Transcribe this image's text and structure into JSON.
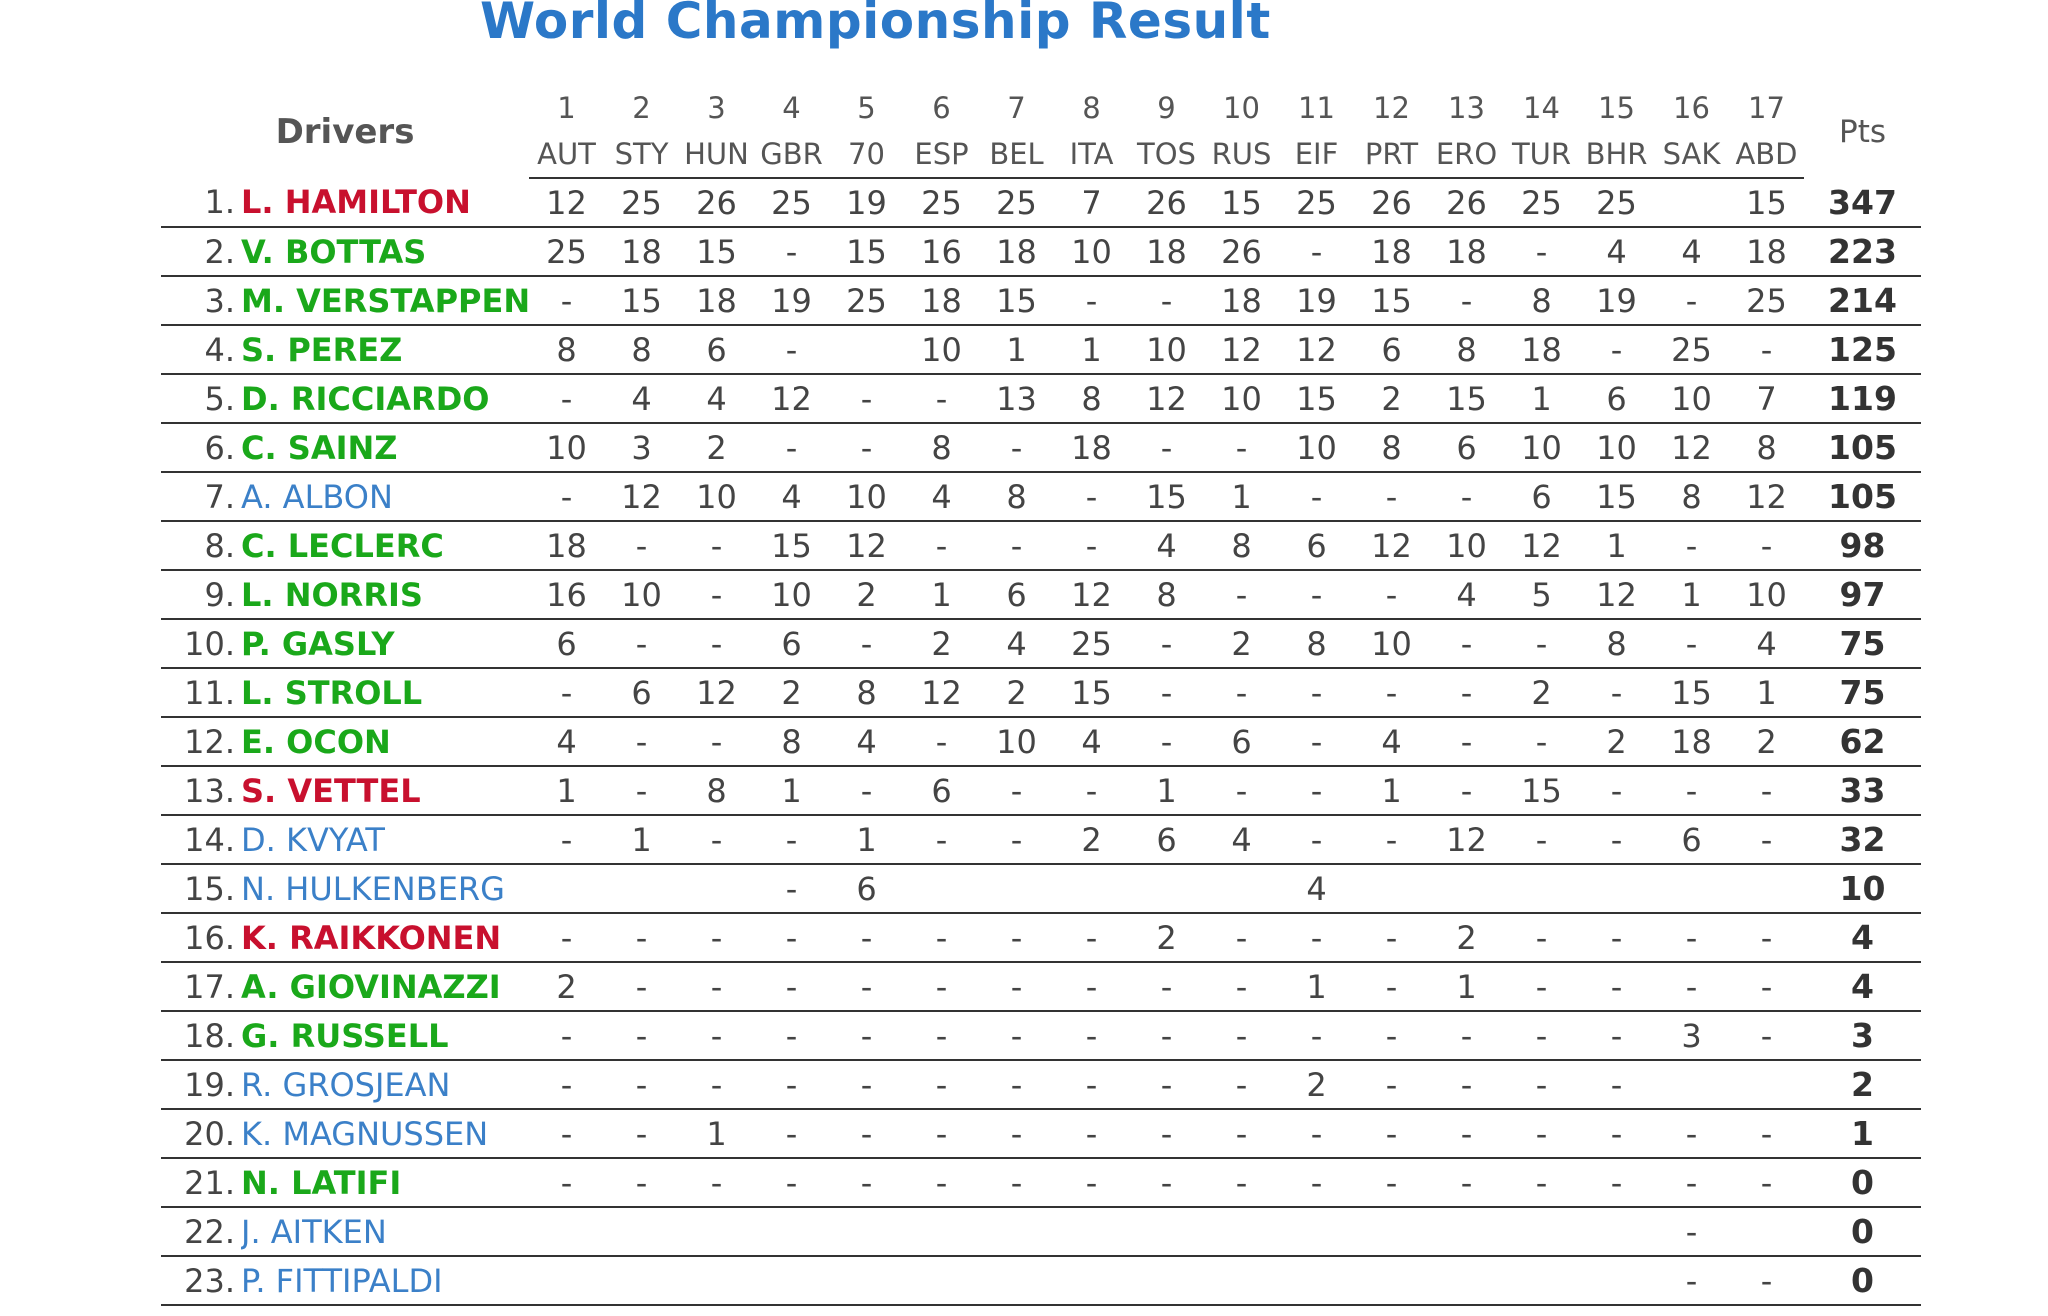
{
  "title": "World Championship Result",
  "header": {
    "drivers": "Drivers",
    "points": "Pts",
    "rounds": [
      {
        "num": "1",
        "code": "AUT"
      },
      {
        "num": "2",
        "code": "STY"
      },
      {
        "num": "3",
        "code": "HUN"
      },
      {
        "num": "4",
        "code": "GBR"
      },
      {
        "num": "5",
        "code": "70"
      },
      {
        "num": "6",
        "code": "ESP"
      },
      {
        "num": "7",
        "code": "BEL"
      },
      {
        "num": "8",
        "code": "ITA"
      },
      {
        "num": "9",
        "code": "TOS"
      },
      {
        "num": "10",
        "code": "RUS"
      },
      {
        "num": "11",
        "code": "EIF"
      },
      {
        "num": "12",
        "code": "PRT"
      },
      {
        "num": "13",
        "code": "ERO"
      },
      {
        "num": "14",
        "code": "TUR"
      },
      {
        "num": "15",
        "code": "BHR"
      },
      {
        "num": "16",
        "code": "SAK"
      },
      {
        "num": "17",
        "code": "ABD"
      }
    ]
  },
  "colors": {
    "red": "#c8102e",
    "green": "#1aa81a",
    "blue": "#3b80c8",
    "title": "#2b78c8"
  },
  "rows": [
    {
      "pos": "1.",
      "name": "L. HAMILTON",
      "color": "red",
      "results": [
        "12",
        "25",
        "26",
        "25",
        "19",
        "25",
        "25",
        "7",
        "26",
        "15",
        "25",
        "26",
        "26",
        "25",
        "25",
        "",
        "15"
      ],
      "pts": "347"
    },
    {
      "pos": "2.",
      "name": "V. BOTTAS",
      "color": "green",
      "results": [
        "25",
        "18",
        "15",
        "-",
        "15",
        "16",
        "18",
        "10",
        "18",
        "26",
        "-",
        "18",
        "18",
        "-",
        "4",
        "4",
        "18"
      ],
      "pts": "223"
    },
    {
      "pos": "3.",
      "name": "M. VERSTAPPEN",
      "color": "green",
      "results": [
        "-",
        "15",
        "18",
        "19",
        "25",
        "18",
        "15",
        "-",
        "-",
        "18",
        "19",
        "15",
        "-",
        "8",
        "19",
        "-",
        "25"
      ],
      "pts": "214"
    },
    {
      "pos": "4.",
      "name": "S. PEREZ",
      "color": "green",
      "results": [
        "8",
        "8",
        "6",
        "-",
        "",
        "10",
        "1",
        "1",
        "10",
        "12",
        "12",
        "6",
        "8",
        "18",
        "-",
        "25",
        "-"
      ],
      "pts": "125"
    },
    {
      "pos": "5.",
      "name": "D. RICCIARDO",
      "color": "green",
      "results": [
        "-",
        "4",
        "4",
        "12",
        "-",
        "-",
        "13",
        "8",
        "12",
        "10",
        "15",
        "2",
        "15",
        "1",
        "6",
        "10",
        "7"
      ],
      "pts": "119"
    },
    {
      "pos": "6.",
      "name": "C. SAINZ",
      "color": "green",
      "results": [
        "10",
        "3",
        "2",
        "-",
        "-",
        "8",
        "-",
        "18",
        "-",
        "-",
        "10",
        "8",
        "6",
        "10",
        "10",
        "12",
        "8"
      ],
      "pts": "105"
    },
    {
      "pos": "7.",
      "name": "A. ALBON",
      "color": "blue",
      "results": [
        "-",
        "12",
        "10",
        "4",
        "10",
        "4",
        "8",
        "-",
        "15",
        "1",
        "-",
        "-",
        "-",
        "6",
        "15",
        "8",
        "12"
      ],
      "pts": "105"
    },
    {
      "pos": "8.",
      "name": "C. LECLERC",
      "color": "green",
      "results": [
        "18",
        "-",
        "-",
        "15",
        "12",
        "-",
        "-",
        "-",
        "4",
        "8",
        "6",
        "12",
        "10",
        "12",
        "1",
        "-",
        "-"
      ],
      "pts": "98"
    },
    {
      "pos": "9.",
      "name": "L. NORRIS",
      "color": "green",
      "results": [
        "16",
        "10",
        "-",
        "10",
        "2",
        "1",
        "6",
        "12",
        "8",
        "-",
        "-",
        "-",
        "4",
        "5",
        "12",
        "1",
        "10"
      ],
      "pts": "97"
    },
    {
      "pos": "10.",
      "name": "P. GASLY",
      "color": "green",
      "results": [
        "6",
        "-",
        "-",
        "6",
        "-",
        "2",
        "4",
        "25",
        "-",
        "2",
        "8",
        "10",
        "-",
        "-",
        "8",
        "-",
        "4"
      ],
      "pts": "75"
    },
    {
      "pos": "11.",
      "name": "L. STROLL",
      "color": "green",
      "results": [
        "-",
        "6",
        "12",
        "2",
        "8",
        "12",
        "2",
        "15",
        "-",
        "-",
        "-",
        "-",
        "-",
        "2",
        "-",
        "15",
        "1"
      ],
      "pts": "75"
    },
    {
      "pos": "12.",
      "name": "E. OCON",
      "color": "green",
      "results": [
        "4",
        "-",
        "-",
        "8",
        "4",
        "-",
        "10",
        "4",
        "-",
        "6",
        "-",
        "4",
        "-",
        "-",
        "2",
        "18",
        "2"
      ],
      "pts": "62"
    },
    {
      "pos": "13.",
      "name": "S. VETTEL",
      "color": "red",
      "results": [
        "1",
        "-",
        "8",
        "1",
        "-",
        "6",
        "-",
        "-",
        "1",
        "-",
        "-",
        "1",
        "-",
        "15",
        "-",
        "-",
        "-"
      ],
      "pts": "33"
    },
    {
      "pos": "14.",
      "name": "D. KVYAT",
      "color": "blue",
      "results": [
        "-",
        "1",
        "-",
        "-",
        "1",
        "-",
        "-",
        "2",
        "6",
        "4",
        "-",
        "-",
        "12",
        "-",
        "-",
        "6",
        "-"
      ],
      "pts": "32"
    },
    {
      "pos": "15.",
      "name": "N. HULKENBERG",
      "color": "blue",
      "results": [
        "",
        "",
        "",
        "-",
        "6",
        "",
        "",
        "",
        "",
        "",
        "4",
        "",
        "",
        "",
        "",
        "",
        ""
      ],
      "pts": "10"
    },
    {
      "pos": "16.",
      "name": "K. RAIKKONEN",
      "color": "red",
      "results": [
        "-",
        "-",
        "-",
        "-",
        "-",
        "-",
        "-",
        "-",
        "2",
        "-",
        "-",
        "-",
        "2",
        "-",
        "-",
        "-",
        "-"
      ],
      "pts": "4"
    },
    {
      "pos": "17.",
      "name": "A. GIOVINAZZI",
      "color": "green",
      "results": [
        "2",
        "-",
        "-",
        "-",
        "-",
        "-",
        "-",
        "-",
        "-",
        "-",
        "1",
        "-",
        "1",
        "-",
        "-",
        "-",
        "-"
      ],
      "pts": "4"
    },
    {
      "pos": "18.",
      "name": "G. RUSSELL",
      "color": "green",
      "results": [
        "-",
        "-",
        "-",
        "-",
        "-",
        "-",
        "-",
        "-",
        "-",
        "-",
        "-",
        "-",
        "-",
        "-",
        "-",
        "3",
        "-"
      ],
      "pts": "3"
    },
    {
      "pos": "19.",
      "name": "R. GROSJEAN",
      "color": "blue",
      "results": [
        "-",
        "-",
        "-",
        "-",
        "-",
        "-",
        "-",
        "-",
        "-",
        "-",
        "2",
        "-",
        "-",
        "-",
        "-",
        "",
        ""
      ],
      "pts": "2"
    },
    {
      "pos": "20.",
      "name": "K. MAGNUSSEN",
      "color": "blue",
      "results": [
        "-",
        "-",
        "1",
        "-",
        "-",
        "-",
        "-",
        "-",
        "-",
        "-",
        "-",
        "-",
        "-",
        "-",
        "-",
        "-",
        "-"
      ],
      "pts": "1"
    },
    {
      "pos": "21.",
      "name": "N. LATIFI",
      "color": "green",
      "results": [
        "-",
        "-",
        "-",
        "-",
        "-",
        "-",
        "-",
        "-",
        "-",
        "-",
        "-",
        "-",
        "-",
        "-",
        "-",
        "-",
        "-"
      ],
      "pts": "0"
    },
    {
      "pos": "22.",
      "name": "J. AITKEN",
      "color": "blue",
      "results": [
        "",
        "",
        "",
        "",
        "",
        "",
        "",
        "",
        "",
        "",
        "",
        "",
        "",
        "",
        "",
        "-",
        ""
      ],
      "pts": "0"
    },
    {
      "pos": "23.",
      "name": "P. FITTIPALDI",
      "color": "blue",
      "results": [
        "",
        "",
        "",
        "",
        "",
        "",
        "",
        "",
        "",
        "",
        "",
        "",
        "",
        "",
        "",
        "-",
        "-"
      ],
      "pts": "0"
    }
  ]
}
